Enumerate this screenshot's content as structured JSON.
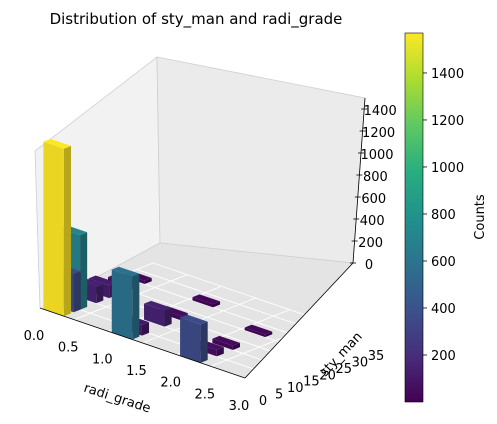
{
  "chart_data": {
    "type": "3d-bar",
    "title": "Distribution of sty_man and radi_grade",
    "xlabel": "radi_grade",
    "ylabel": "sty_man",
    "zlabel": "",
    "xlim": [
      0,
      3
    ],
    "ylim": [
      0,
      35
    ],
    "zlim": [
      0,
      1550
    ],
    "xticks": [
      "0.0",
      "0.5",
      "1.0",
      "1.5",
      "2.0",
      "2.5",
      "3.0"
    ],
    "yticks": [
      "0",
      "5",
      "10",
      "15",
      "20",
      "25",
      "30",
      "35"
    ],
    "zticks": [
      "0",
      "200",
      "400",
      "600",
      "800",
      "1000",
      "1200",
      "1400"
    ],
    "colorbar": {
      "label": "Counts",
      "min": 0,
      "max": 1570,
      "ticks": [
        "200",
        "400",
        "600",
        "800",
        "1000",
        "1200",
        "1400"
      ],
      "colormap": "viridis"
    },
    "bars": [
      {
        "x": 0.0,
        "y": 0,
        "count": 1570
      },
      {
        "x": 0.0,
        "y": 5,
        "count": 700
      },
      {
        "x": 0.0,
        "y": 3,
        "count": 360
      },
      {
        "x": 0.0,
        "y": 10,
        "count": 150
      },
      {
        "x": 0.0,
        "y": 14,
        "count": 120
      },
      {
        "x": 0.0,
        "y": 20,
        "count": 60
      },
      {
        "x": 0.0,
        "y": 25,
        "count": 30
      },
      {
        "x": 1.0,
        "y": 0,
        "count": 590
      },
      {
        "x": 1.0,
        "y": 3,
        "count": 100
      },
      {
        "x": 1.0,
        "y": 10,
        "count": 150
      },
      {
        "x": 1.0,
        "y": 15,
        "count": 40
      },
      {
        "x": 1.0,
        "y": 25,
        "count": 30
      },
      {
        "x": 2.0,
        "y": 0,
        "count": 360
      },
      {
        "x": 2.0,
        "y": 5,
        "count": 60
      },
      {
        "x": 2.0,
        "y": 10,
        "count": 40
      },
      {
        "x": 2.0,
        "y": 20,
        "count": 25
      }
    ]
  }
}
